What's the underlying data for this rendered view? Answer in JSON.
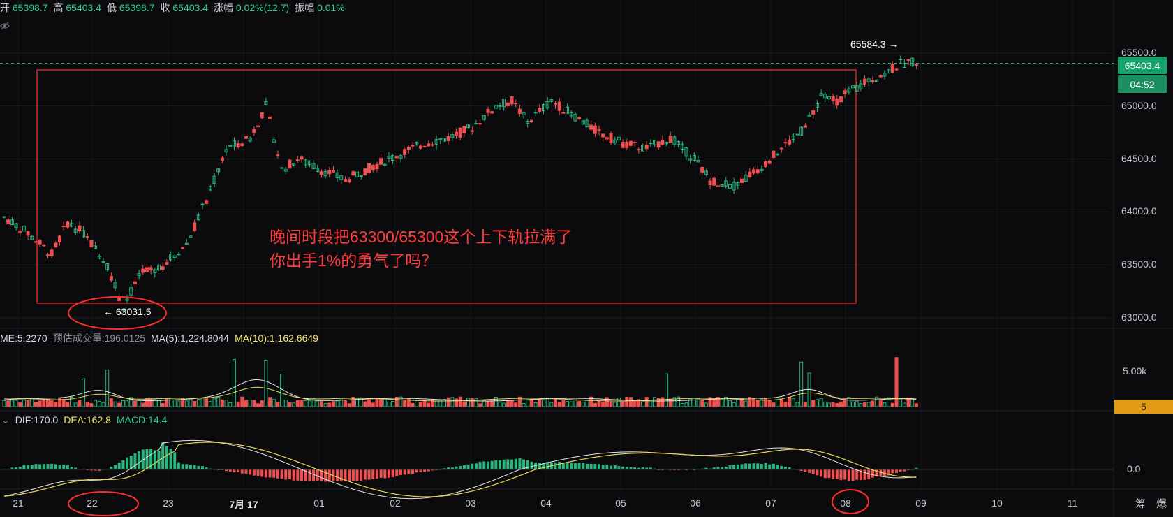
{
  "ohlc": {
    "open_label": "开",
    "open": "65398.7",
    "high_label": "高",
    "high": "65403.4",
    "low_label": "低",
    "low": "65398.7",
    "close_label": "收",
    "close": "65403.4",
    "change_label": "涨幅",
    "change": "0.02%(12.7)",
    "amp_label": "振幅",
    "amp": "0.01%"
  },
  "volume_indicator": {
    "volume_text": "ME:5.2270",
    "estimate_text": "预估成交量:196.0125",
    "ma5_text": "MA(5):1,224.8044",
    "ma10_text": "MA(10):1,162.6649"
  },
  "macd_indicator": {
    "dif_text": "DIF:170.0",
    "dea_text": "DEA:162.8",
    "macd_text": "MACD:14.4"
  },
  "annotation": {
    "line1": "晚间时段把63300/65300这个上下轨拉满了",
    "line2": "你出手1%的勇气了吗？"
  },
  "markers": {
    "high_text": "65584.3",
    "low_text": "63031.5"
  },
  "price_axis": {
    "labels": [
      "65500.0",
      "65000.0",
      "64500.0",
      "64000.0",
      "63500.0",
      "63000.0"
    ],
    "current_price": "65403.4",
    "countdown": "04:52"
  },
  "volume_axis": {
    "label": "5.00k",
    "current_tag": "5"
  },
  "macd_axis": {
    "label": "0.0"
  },
  "time_axis": {
    "labels": [
      "21",
      "22",
      "23",
      "7月 17",
      "01",
      "02",
      "03",
      "04",
      "05",
      "06",
      "07",
      "08",
      "09",
      "10",
      "11"
    ]
  },
  "corner_controls": {
    "left": "筹",
    "right": "爆"
  },
  "colors": {
    "up": "#26b67e",
    "down": "#ef4f4f",
    "annotation": "#ff2d2d",
    "ma_white": "#e6e6e6",
    "ma_yellow": "#e9d85a",
    "background": "#0b0b0d"
  },
  "icons": {
    "visibility": "eye-icon"
  }
}
